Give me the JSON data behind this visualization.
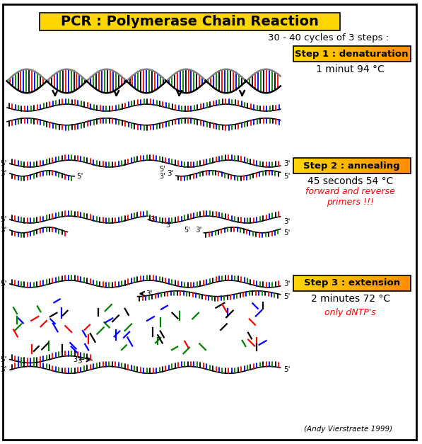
{
  "title": "PCR : Polymerase Chain Reaction",
  "cycles_text": "30 - 40 cycles of 3 steps :",
  "step1_label": "Step 1 : denaturation",
  "step1_detail": "1 minut 94 °C",
  "step2_label": "Step 2 : annealing",
  "step2_detail": "45 seconds 54 °C",
  "step2_red": "forward and reverse\nprimers !!!",
  "step3_label": "Step 3 : extension",
  "step3_detail": "2 minutes 72 °C",
  "step3_red": "only dNTP's",
  "credit": "(Andy Vierstraete 1999)",
  "bg_color": "#FFFFFF",
  "title_bg": "#FFD700",
  "step_box_y_start": "#FFD700",
  "step_box_end": "#FF8C00",
  "dna_colors": [
    "#000000",
    "#FF0000",
    "#0000FF",
    "#008000"
  ]
}
